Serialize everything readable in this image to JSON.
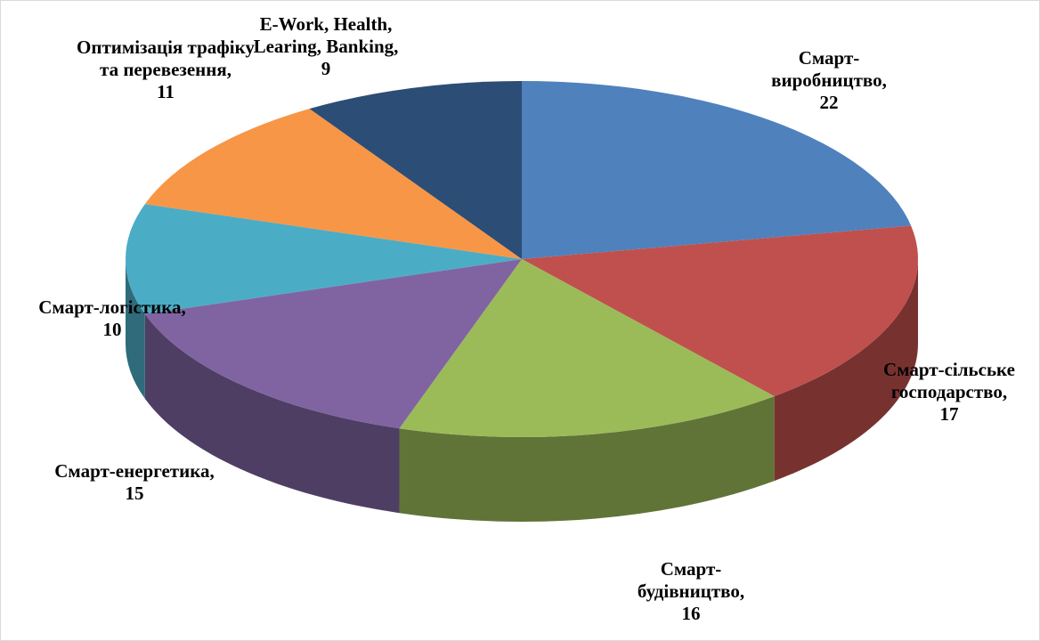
{
  "chart_data": {
    "type": "pie",
    "categories": [
      "Смарт-виробництво,",
      "Смарт-сільське господарство,",
      "Смарт-будівництво,",
      "Смарт-енергетика,",
      "Смарт-логістика,",
      "Оптимізація трафіку та перевезення,",
      "E-Work, Health, Learing, Banking,"
    ],
    "values": [
      22,
      17,
      16,
      15,
      10,
      11,
      9
    ],
    "colors": [
      "#4f81bd",
      "#c0504d",
      "#9bbb59",
      "#8064a2",
      "#4bacc6",
      "#f79646",
      "#2c4d75"
    ]
  }
}
